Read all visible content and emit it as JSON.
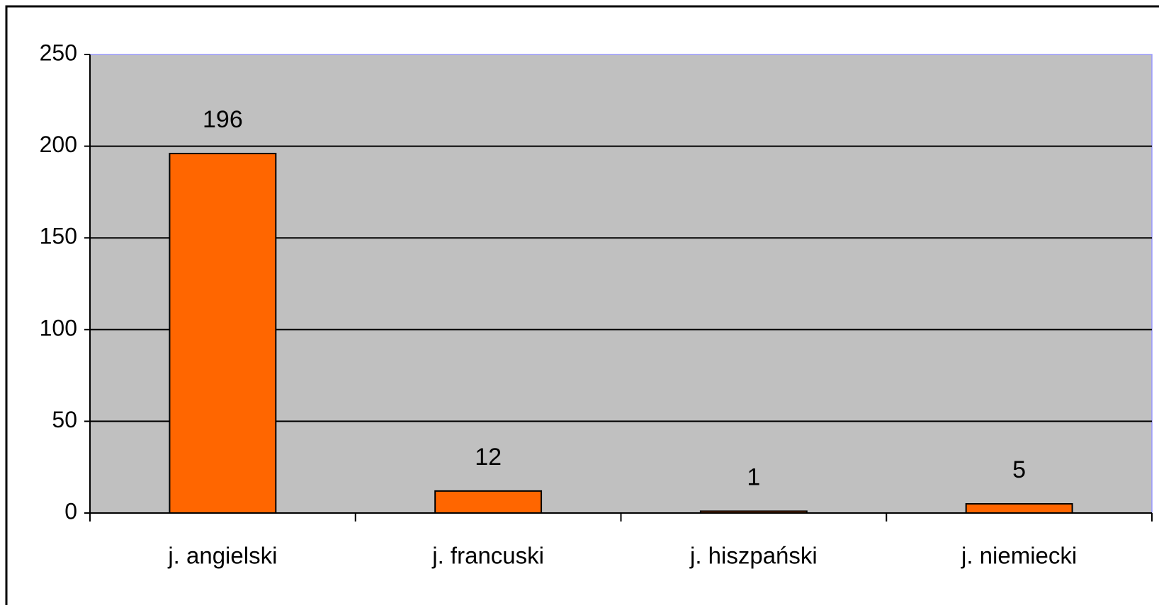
{
  "chart_data": {
    "type": "bar",
    "categories": [
      "j. angielski",
      "j. francuski",
      "j. hiszpański",
      "j. niemiecki"
    ],
    "values": [
      196,
      12,
      1,
      5
    ],
    "color": "#ff6600",
    "ylim": [
      0,
      250
    ],
    "yticks": [
      0,
      50,
      100,
      150,
      200,
      250
    ],
    "grid": true
  }
}
